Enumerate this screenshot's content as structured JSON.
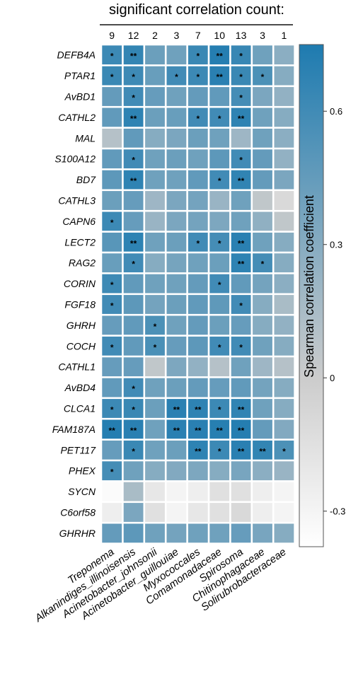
{
  "chart_data": {
    "type": "heatmap",
    "title": "significant correlation count:",
    "colorbar_label": "Spearman correlation coefficient",
    "colorbar_ticks": [
      0.6,
      0.3,
      0,
      -0.3
    ],
    "color_range": [
      -0.38,
      0.75
    ],
    "colors": {
      "low": "#ffffff",
      "mid": "#cccccc",
      "high": "#1e7bb0"
    },
    "columns": [
      "Treponema",
      "Alkanindiges_illinoisensis",
      "Acinetobacter_johnsonii",
      "Acinetobacter_guillouiae",
      "Myxococcales",
      "Comamonadaceae",
      "Spirosoma",
      "Chitinophagaceae",
      "Solirubrobacteraceae"
    ],
    "counts": [
      "9",
      "12",
      "2",
      "3",
      "7",
      "10",
      "13",
      "3",
      "1"
    ],
    "rows": [
      "DEFB4A",
      "PTAR1",
      "AvBD1",
      "CATHL2",
      "MAL",
      "S100A12",
      "BD7",
      "CATHL3",
      "CAPN6",
      "LECT2",
      "RAG2",
      "CORIN",
      "FGF18",
      "GHRH",
      "COCH",
      "CATHL1",
      "AvBD4",
      "CLCA1",
      "FAM187A",
      "PET117",
      "PHEX",
      "SYCN",
      "C6orf58",
      "GHRHR"
    ],
    "values": [
      [
        0.62,
        0.66,
        0.42,
        0.4,
        0.63,
        0.72,
        0.64,
        0.4,
        0.28
      ],
      [
        0.63,
        0.61,
        0.43,
        0.6,
        0.62,
        0.7,
        0.63,
        0.55,
        0.3
      ],
      [
        0.45,
        0.6,
        0.44,
        0.4,
        0.45,
        0.46,
        0.58,
        0.35,
        0.25
      ],
      [
        0.46,
        0.68,
        0.42,
        0.43,
        0.6,
        0.6,
        0.68,
        0.4,
        0.3
      ],
      [
        0.1,
        0.46,
        0.3,
        0.35,
        0.42,
        0.4,
        0.2,
        0.4,
        0.28
      ],
      [
        0.46,
        0.6,
        0.4,
        0.42,
        0.4,
        0.48,
        0.6,
        0.45,
        0.25
      ],
      [
        0.48,
        0.68,
        0.4,
        0.4,
        0.46,
        0.6,
        0.67,
        0.45,
        0.35
      ],
      [
        0.42,
        0.44,
        0.2,
        0.35,
        0.38,
        0.22,
        0.4,
        0.05,
        -0.1
      ],
      [
        0.62,
        0.44,
        0.22,
        0.35,
        0.38,
        0.34,
        0.4,
        0.26,
        0.05
      ],
      [
        0.5,
        0.68,
        0.4,
        0.42,
        0.6,
        0.58,
        0.7,
        0.4,
        0.3
      ],
      [
        0.43,
        0.6,
        0.3,
        0.37,
        0.4,
        0.42,
        0.68,
        0.58,
        0.3
      ],
      [
        0.61,
        0.46,
        0.4,
        0.4,
        0.45,
        0.6,
        0.46,
        0.38,
        0.28
      ],
      [
        0.6,
        0.48,
        0.38,
        0.42,
        0.46,
        0.47,
        0.6,
        0.3,
        0.15
      ],
      [
        0.44,
        0.46,
        0.55,
        0.4,
        0.45,
        0.42,
        0.44,
        0.3,
        0.25
      ],
      [
        0.6,
        0.46,
        0.56,
        0.44,
        0.48,
        0.6,
        0.6,
        0.4,
        0.3
      ],
      [
        0.44,
        0.44,
        0.05,
        0.34,
        0.25,
        0.1,
        0.4,
        0.2,
        0.1
      ],
      [
        0.46,
        0.6,
        0.4,
        0.42,
        0.45,
        0.44,
        0.46,
        0.38,
        0.3
      ],
      [
        0.62,
        0.63,
        0.42,
        0.7,
        0.68,
        0.62,
        0.67,
        0.4,
        0.3
      ],
      [
        0.72,
        0.7,
        0.4,
        0.7,
        0.7,
        0.71,
        0.72,
        0.45,
        0.32
      ],
      [
        0.44,
        0.63,
        0.4,
        0.42,
        0.68,
        0.62,
        0.7,
        0.66,
        0.55
      ],
      [
        0.58,
        0.4,
        0.3,
        0.32,
        0.34,
        0.3,
        0.36,
        0.28,
        0.22
      ],
      [
        -0.35,
        0.15,
        -0.2,
        -0.3,
        -0.25,
        -0.15,
        -0.15,
        -0.25,
        -0.3
      ],
      [
        -0.25,
        0.35,
        -0.15,
        -0.3,
        -0.2,
        -0.15,
        -0.1,
        -0.25,
        -0.3
      ],
      [
        0.45,
        0.48,
        0.4,
        0.38,
        0.4,
        0.4,
        0.44,
        0.36,
        0.3
      ]
    ],
    "significance": [
      [
        "*",
        "**",
        "",
        "",
        "*",
        "**",
        "*",
        "",
        ""
      ],
      [
        "*",
        "*",
        "",
        "*",
        "*",
        "**",
        "*",
        "*",
        ""
      ],
      [
        "",
        "*",
        "",
        "",
        "",
        "",
        "*",
        "",
        ""
      ],
      [
        "",
        "**",
        "",
        "",
        "*",
        "*",
        "**",
        "",
        ""
      ],
      [
        "",
        "",
        "",
        "",
        "",
        "",
        "",
        "",
        ""
      ],
      [
        "",
        "*",
        "",
        "",
        "",
        "",
        "*",
        "",
        ""
      ],
      [
        "",
        "**",
        "",
        "",
        "",
        "*",
        "**",
        "",
        ""
      ],
      [
        "",
        "",
        "",
        "",
        "",
        "",
        "",
        "",
        ""
      ],
      [
        "*",
        "",
        "",
        "",
        "",
        "",
        "",
        "",
        ""
      ],
      [
        "",
        "**",
        "",
        "",
        "*",
        "*",
        "**",
        "",
        ""
      ],
      [
        "",
        "*",
        "",
        "",
        "",
        "",
        "**",
        "*",
        ""
      ],
      [
        "*",
        "",
        "",
        "",
        "",
        "*",
        "",
        "",
        ""
      ],
      [
        "*",
        "",
        "",
        "",
        "",
        "",
        "*",
        "",
        ""
      ],
      [
        "",
        "",
        "*",
        "",
        "",
        "",
        "",
        "",
        ""
      ],
      [
        "*",
        "",
        "*",
        "",
        "",
        "*",
        "*",
        "",
        ""
      ],
      [
        "",
        "",
        "",
        "",
        "",
        "",
        "",
        "",
        ""
      ],
      [
        "",
        "*",
        "",
        "",
        "",
        "",
        "",
        "",
        ""
      ],
      [
        "*",
        "*",
        "",
        "**",
        "**",
        "*",
        "**",
        "",
        ""
      ],
      [
        "**",
        "**",
        "",
        "**",
        "**",
        "**",
        "**",
        "",
        ""
      ],
      [
        "",
        "*",
        "",
        "",
        "**",
        "*",
        "**",
        "**",
        "*"
      ],
      [
        "*",
        "",
        "",
        "",
        "",
        "",
        "",
        "",
        ""
      ],
      [
        "",
        "",
        "",
        "",
        "",
        "",
        "",
        "",
        ""
      ],
      [
        "",
        "",
        "",
        "",
        "",
        "",
        "",
        "",
        ""
      ],
      [
        "",
        "",
        "",
        "",
        "",
        "",
        "",
        "",
        ""
      ]
    ]
  }
}
